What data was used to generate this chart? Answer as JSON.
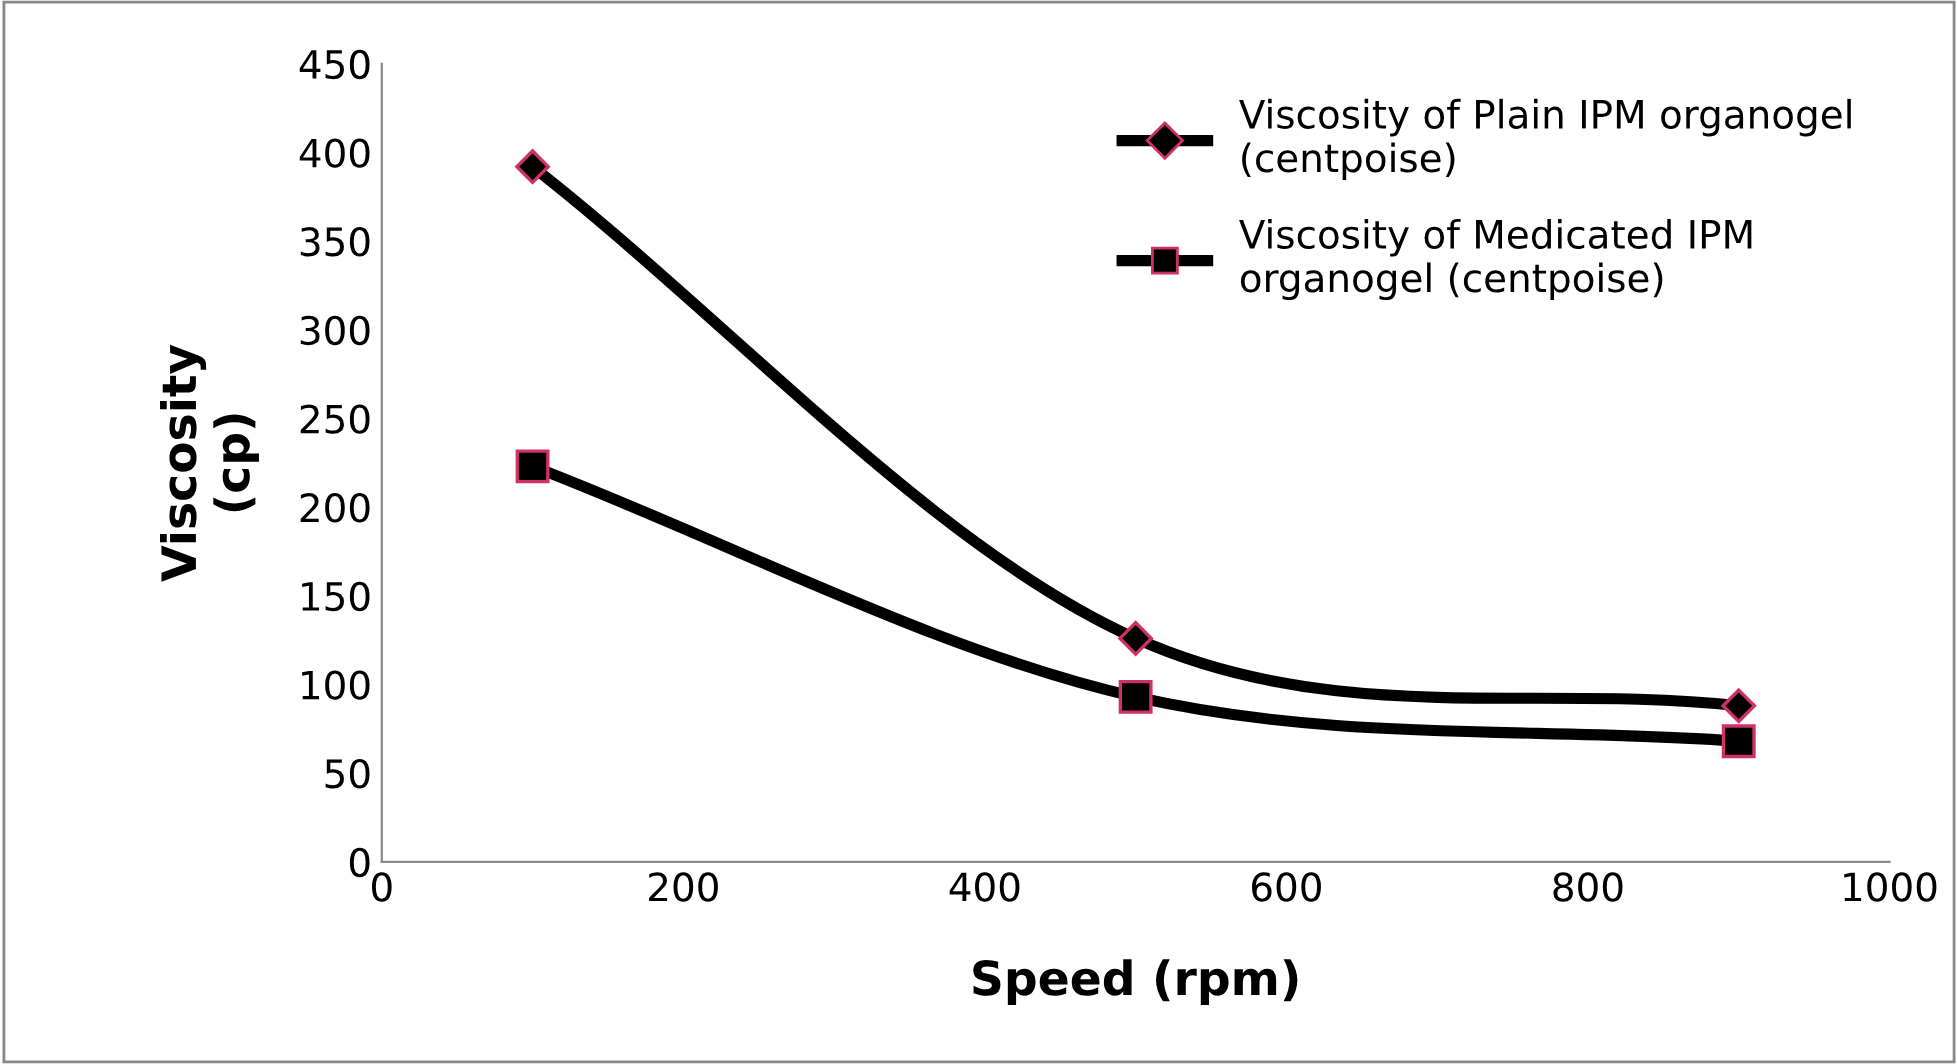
{
  "chart_data": {
    "type": "line",
    "xlabel": "Speed (rpm)",
    "ylabel": "Viscosity\n(cp)",
    "x": [
      100,
      500,
      900
    ],
    "series": [
      {
        "name": "Viscosity of Plain IPM organogel\n(centpoise)",
        "color": "#000000",
        "marker": "diamond",
        "values": [
          392,
          126,
          88
        ]
      },
      {
        "name": "Viscosity of Medicated IPM\norganogel (centpoise)",
        "color": "#000000",
        "marker": "square",
        "values": [
          223,
          93,
          68
        ]
      }
    ],
    "xlim": [
      0,
      1000
    ],
    "xticks": [
      0,
      200,
      400,
      600,
      800,
      1000
    ],
    "ylim": [
      0,
      450
    ],
    "yticks": [
      0,
      50,
      100,
      150,
      200,
      250,
      300,
      350,
      400,
      450
    ],
    "grid": false,
    "legend": "top right",
    "line_style": "solid"
  }
}
